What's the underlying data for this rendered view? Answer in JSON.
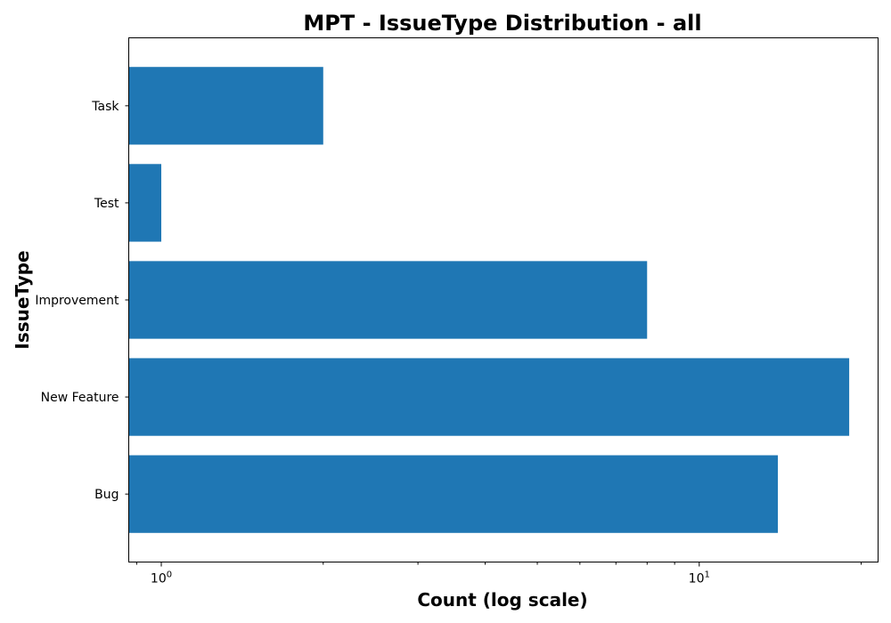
{
  "chart_data": {
    "type": "bar",
    "orientation": "horizontal",
    "title": "MPT - IssueType Distribution - all",
    "xlabel": "Count (log scale)",
    "ylabel": "IssueType",
    "xscale": "log",
    "xlim": [
      0.87,
      21.5
    ],
    "x_ticks": [
      {
        "value": 1,
        "base": "10",
        "exponent": "0"
      },
      {
        "value": 10,
        "base": "10",
        "exponent": "1"
      }
    ],
    "categories": [
      "Task",
      "Test",
      "Improvement",
      "New Feature",
      "Bug"
    ],
    "values": [
      2,
      1,
      8,
      19,
      14
    ],
    "bar_color": "#1f77b4",
    "grid": false,
    "legend": "none"
  }
}
